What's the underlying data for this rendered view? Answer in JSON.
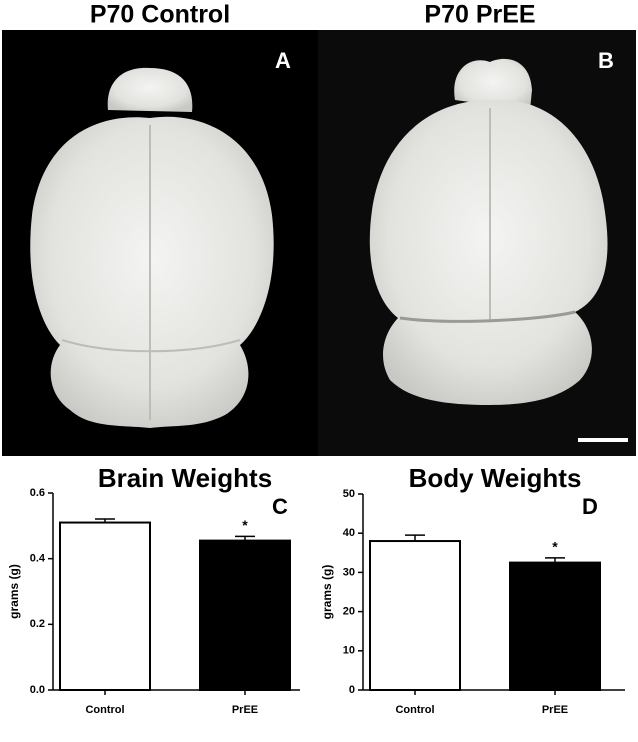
{
  "photo_panels": [
    {
      "title": "P70 Control",
      "letter": "A"
    },
    {
      "title": "P70 PrEE",
      "letter": "B"
    }
  ],
  "chart_data": [
    {
      "type": "bar",
      "title": "Brain Weights",
      "letter": "C",
      "ylabel": "grams (g)",
      "categories": [
        "Control",
        "PrEE"
      ],
      "values": [
        0.51,
        0.455
      ],
      "errors": [
        0.011,
        0.013
      ],
      "colors": [
        "#ffffff",
        "#000000"
      ],
      "annotation": "*",
      "ylim": [
        0,
        0.6
      ],
      "yticks": [
        {
          "value": 0,
          "label": "0.0"
        },
        0.2,
        0.4,
        0.6
      ]
    },
    {
      "type": "bar",
      "title": "Body Weights",
      "letter": "D",
      "ylabel": "grams (g)",
      "categories": [
        "Control",
        "PrEE"
      ],
      "values": [
        38,
        32.5
      ],
      "errors": [
        1.5,
        1.2
      ],
      "colors": [
        "#ffffff",
        "#000000"
      ],
      "annotation": "*",
      "ylim": [
        0,
        50
      ],
      "yticks": [
        0,
        10,
        20,
        30,
        40,
        50
      ]
    }
  ]
}
